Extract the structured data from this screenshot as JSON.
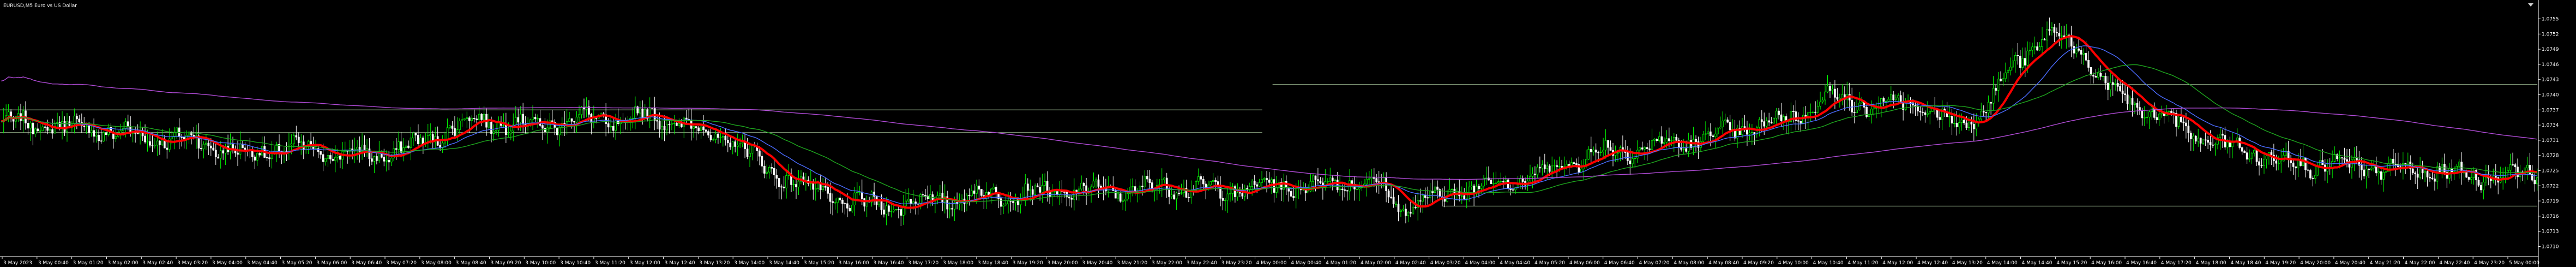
{
  "window": {
    "title": "EURUSD,M5  Euro vs US Dollar",
    "ohlc": ""
  },
  "colors": {
    "background": "#000000",
    "bull_candle": "#00ff00",
    "bear_candle": "#ffffff",
    "ma_fast": "#ff0000",
    "ma_mid": "#4b6cff",
    "ma_slow": "#1ea51e",
    "ma_slowest": "#b04bd6",
    "level": "#d8ffc8",
    "axis": "#ffffff"
  },
  "chart_data": {
    "type": "candlestick",
    "title": "EURUSD,M5  Euro vs US Dollar",
    "ylim": [
      1.0708,
      1.0757
    ],
    "y_ticks": [
      1.0755,
      1.0752,
      1.0749,
      1.0746,
      1.0743,
      1.074,
      1.0737,
      1.0734,
      1.0731,
      1.0728,
      1.0725,
      1.0722,
      1.0719,
      1.0716,
      1.0713,
      1.071
    ],
    "x_ticks": [
      "3 May 2023",
      "3 May 00:40",
      "3 May 01:20",
      "3 May 02:00",
      "3 May 02:40",
      "3 May 03:20",
      "3 May 04:00",
      "3 May 04:40",
      "3 May 05:20",
      "3 May 06:00",
      "3 May 06:40",
      "3 May 07:20",
      "3 May 08:00",
      "3 May 08:40",
      "3 May 09:20",
      "3 May 10:00",
      "3 May 10:40",
      "3 May 11:20",
      "3 May 12:00",
      "3 May 12:40",
      "3 May 13:20",
      "3 May 14:00",
      "3 May 14:40",
      "3 May 15:20",
      "3 May 16:00",
      "3 May 16:40",
      "3 May 17:20",
      "3 May 18:00",
      "3 May 18:40",
      "3 May 19:20",
      "3 May 20:00",
      "3 May 20:40",
      "3 May 21:20",
      "3 May 22:00",
      "3 May 22:40",
      "3 May 23:20",
      "4 May 00:00",
      "4 May 00:40",
      "4 May 01:20",
      "4 May 02:00",
      "4 May 02:40",
      "4 May 03:20",
      "4 May 04:00",
      "4 May 04:40",
      "4 May 05:20",
      "4 May 06:00",
      "4 May 06:40",
      "4 May 07:20",
      "4 May 08:00",
      "4 May 08:40",
      "4 May 09:20",
      "4 May 10:00",
      "4 May 10:40",
      "4 May 11:20",
      "4 May 12:00",
      "4 May 12:40",
      "4 May 13:20",
      "4 May 14:00",
      "4 May 14:40",
      "4 May 15:20",
      "4 May 16:00",
      "4 May 16:40",
      "4 May 17:20",
      "4 May 18:00",
      "4 May 18:40",
      "4 May 19:20",
      "4 May 20:00",
      "4 May 20:40",
      "4 May 21:20",
      "4 May 22:00",
      "4 May 22:40",
      "4 May 23:20",
      "5 May 00:00"
    ],
    "anchors": [
      [
        0,
        1.07345
      ],
      [
        20,
        1.0734
      ],
      [
        40,
        1.0733
      ],
      [
        60,
        1.07315
      ],
      [
        80,
        1.0731
      ],
      [
        100,
        1.0728
      ],
      [
        115,
        1.07295
      ],
      [
        130,
        1.0729
      ],
      [
        145,
        1.0728
      ],
      [
        160,
        1.07285
      ],
      [
        175,
        1.0731
      ],
      [
        185,
        1.07335
      ],
      [
        195,
        1.0735
      ],
      [
        205,
        1.07345
      ],
      [
        220,
        1.0734
      ],
      [
        232,
        1.0735
      ],
      [
        245,
        1.07355
      ],
      [
        255,
        1.0734
      ],
      [
        262,
        1.0736
      ],
      [
        275,
        1.0735
      ],
      [
        285,
        1.0733
      ],
      [
        300,
        1.0731
      ],
      [
        315,
        1.0725
      ],
      [
        330,
        1.0722
      ],
      [
        345,
        1.0719
      ],
      [
        360,
        1.0718
      ],
      [
        380,
        1.0719
      ],
      [
        400,
        1.072
      ],
      [
        420,
        1.07205
      ],
      [
        440,
        1.0721
      ],
      [
        460,
        1.0721
      ],
      [
        480,
        1.0722
      ],
      [
        500,
        1.0721
      ],
      [
        520,
        1.0722
      ],
      [
        540,
        1.0722
      ],
      [
        555,
        1.0723
      ],
      [
        565,
        1.0722
      ],
      [
        575,
        1.07175
      ],
      [
        590,
        1.072
      ],
      [
        605,
        1.0722
      ],
      [
        620,
        1.0723
      ],
      [
        635,
        1.0725
      ],
      [
        650,
        1.0728
      ],
      [
        665,
        1.0729
      ],
      [
        680,
        1.073
      ],
      [
        695,
        1.0731
      ],
      [
        710,
        1.0733
      ],
      [
        725,
        1.0734
      ],
      [
        735,
        1.0736
      ],
      [
        745,
        1.0738
      ],
      [
        752,
        1.074
      ],
      [
        760,
        1.07385
      ],
      [
        770,
        1.0737
      ],
      [
        780,
        1.0739
      ],
      [
        790,
        1.0737
      ],
      [
        800,
        1.0734
      ],
      [
        810,
        1.0736
      ],
      [
        818,
        1.074
      ],
      [
        825,
        1.0746
      ],
      [
        832,
        1.0749
      ],
      [
        840,
        1.0752
      ],
      [
        850,
        1.075
      ],
      [
        858,
        1.0745
      ],
      [
        865,
        1.0741
      ],
      [
        875,
        1.0738
      ],
      [
        890,
        1.0735
      ],
      [
        905,
        1.0731
      ],
      [
        920,
        1.0729
      ],
      [
        935,
        1.0727
      ],
      [
        950,
        1.0726
      ],
      [
        965,
        1.0726
      ],
      [
        980,
        1.0725
      ],
      [
        995,
        1.0725
      ],
      [
        1010,
        1.0724
      ],
      [
        1025,
        1.0724
      ],
      [
        1040,
        1.0725
      ]
    ],
    "moving_averages": [
      {
        "key": "ma_fast",
        "period": 14,
        "width": 4
      },
      {
        "key": "ma_mid",
        "period": 30,
        "width": 1.4
      },
      {
        "key": "ma_slow",
        "period": 60,
        "width": 1.4
      },
      {
        "key": "ma_slowest",
        "period": 240,
        "width": 1.4
      }
    ],
    "levels": [
      {
        "value": 1.0737,
        "from_ratio": 0.0,
        "to_ratio": 0.49
      },
      {
        "value": 1.07325,
        "from_ratio": 0.0,
        "to_ratio": 0.49
      },
      {
        "value": 1.0742,
        "from_ratio": 0.494,
        "to_ratio": 0.985
      },
      {
        "value": 1.0718,
        "from_ratio": 0.56,
        "to_ratio": 0.985
      }
    ],
    "grid": false,
    "legend": "none"
  }
}
